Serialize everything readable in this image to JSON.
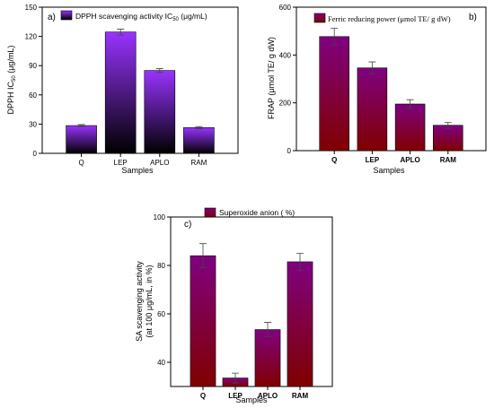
{
  "chart_data": [
    {
      "type": "bar",
      "panel_label": "a)",
      "categories": [
        "Q",
        "LEP",
        "APLO",
        "RAM"
      ],
      "values": [
        28.5,
        124.5,
        85,
        26.5
      ],
      "errors": [
        1,
        3,
        2,
        1
      ],
      "ylim": [
        0,
        150
      ],
      "yticks": [
        "0",
        "30",
        "60",
        "90",
        "120",
        "150"
      ],
      "ylabel_main": "DPPH IC",
      "ylabel_sub": "50",
      "ylabel_tail": " (μg/mL)",
      "xlabel": "",
      "legend_main": "DPPH scavenging activity IC",
      "legend_sub": "50",
      "legend_tail": " (μg/mL)",
      "legend_position": "top-right",
      "gradient": [
        "#9933ff",
        "#000000"
      ],
      "grid": false
    },
    {
      "type": "bar",
      "panel_label": "b)",
      "categories": [
        "Q",
        "LEP",
        "APLO",
        "RAM"
      ],
      "values": [
        477,
        346,
        195,
        106
      ],
      "errors": [
        35,
        25,
        18,
        12
      ],
      "ylim": [
        0,
        600
      ],
      "yticks": [
        "0",
        "200",
        "400",
        "600"
      ],
      "ylabel": "FRAP (μmol TE/ g dW)",
      "xlabel": "Samples",
      "legend": "Ferric reducing power (μmol TE/ g dW)",
      "legend_position": "top-right",
      "gradient": [
        "#800080",
        "#800000"
      ],
      "grid": false
    },
    {
      "type": "bar",
      "panel_label": "c)",
      "categories": [
        "Q",
        "LEP",
        "APLO",
        "RAM"
      ],
      "values": [
        84,
        33.5,
        53.5,
        81.5
      ],
      "errors": [
        5,
        2,
        3,
        3.5
      ],
      "ylim": [
        30,
        100
      ],
      "yticks": [
        "40",
        "60",
        "80",
        "100"
      ],
      "ylabel_line1": "SA scavenging activity",
      "ylabel_line2": "(at 100 μg/mL, in %)",
      "xlabel": "Samples",
      "legend": "Superoxide anion ( %)",
      "legend_position": "top-left",
      "gradient": [
        "#800080",
        "#800000"
      ],
      "grid": false
    }
  ],
  "xlabel_a": "Samples"
}
